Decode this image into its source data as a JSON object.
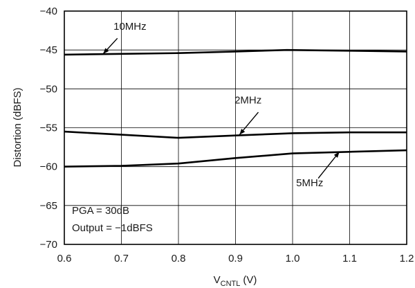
{
  "chart_data": {
    "type": "line",
    "title": "",
    "xlabel": "V",
    "xlabel_subscript": "CNTL",
    "xlabel_unit": "(V)",
    "ylabel": "Distortion (dBFS)",
    "xlim": [
      0.6,
      1.2
    ],
    "ylim": [
      -70,
      -40
    ],
    "x_ticks": [
      "0.6",
      "0.7",
      "0.8",
      "0.9",
      "1.0",
      "1.1",
      "1.2"
    ],
    "y_ticks": [
      "−40",
      "−45",
      "−50",
      "−55",
      "−60",
      "−65",
      "−70"
    ],
    "grid": true,
    "legend": null,
    "series": [
      {
        "name": "10MHz",
        "x": [
          0.6,
          0.7,
          0.8,
          0.9,
          0.99,
          1.1,
          1.2
        ],
        "y": [
          -45.6,
          -45.5,
          -45.4,
          -45.2,
          -45.0,
          -45.1,
          -45.2
        ]
      },
      {
        "name": "2MHz",
        "x": [
          0.6,
          0.7,
          0.8,
          0.9,
          1.0,
          1.1,
          1.2
        ],
        "y": [
          -55.5,
          -55.9,
          -56.3,
          -56.0,
          -55.7,
          -55.6,
          -55.6
        ]
      },
      {
        "name": "5MHz",
        "x": [
          0.6,
          0.7,
          0.8,
          0.9,
          1.0,
          1.1,
          1.2
        ],
        "y": [
          -60.0,
          -59.9,
          -59.6,
          -58.9,
          -58.3,
          -58.1,
          -57.9
        ]
      }
    ],
    "annotations": [
      {
        "label": "10MHz",
        "tx": 0.715,
        "ty": -42.4,
        "ax": 0.693,
        "ay": -43.5,
        "bx": 0.668,
        "by": -45.5
      },
      {
        "label": "2MHz",
        "tx": 0.922,
        "ty": -51.9,
        "ax": 0.94,
        "ay": -53.0,
        "bx": 0.907,
        "by": -55.9
      },
      {
        "label": "5MHz",
        "tx": 1.03,
        "ty": -62.5,
        "ax": 1.045,
        "ay": -61.5,
        "bx": 1.082,
        "by": -58.1
      }
    ],
    "notes": [
      "PGA = 30dB",
      "Output = −1dBFS"
    ]
  }
}
